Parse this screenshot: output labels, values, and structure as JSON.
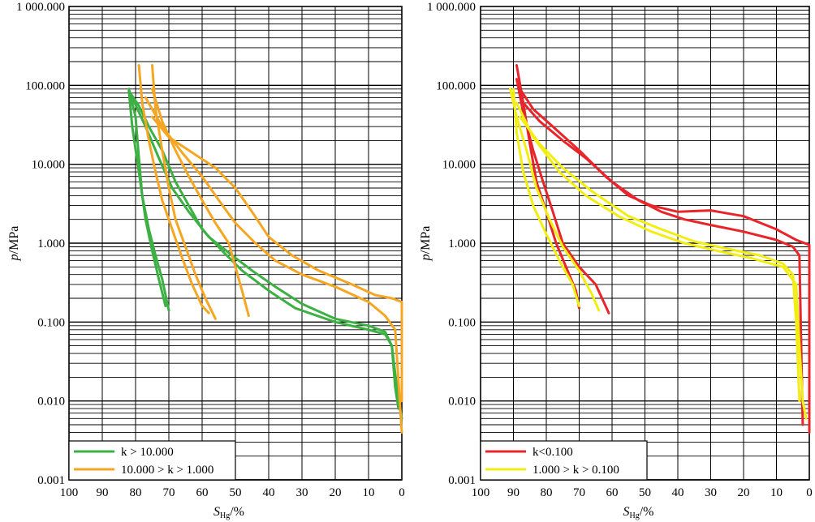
{
  "chart_data": [
    {
      "type": "line",
      "panel": "left",
      "xlabel": "S_Hg/%",
      "xlabel_main": "S",
      "xlabel_sub": "Hg",
      "xlabel_unit": "/%",
      "ylabel": "p/MPa",
      "ylabel_italic": "p",
      "ylabel_unit": "/MPa",
      "x_reversed": true,
      "xlim": [
        100,
        0
      ],
      "ylim": [
        0.001,
        1000
      ],
      "y_scale": "log",
      "grid": true,
      "legend_position": "bottom-left",
      "x_ticks": [
        "100",
        "90",
        "80",
        "70",
        "60",
        "50",
        "40",
        "30",
        "20",
        "10",
        "0"
      ],
      "y_ticks": [
        "0.001",
        "0.010",
        "0.100",
        "1.000",
        "10.000",
        "100.000",
        "1 000.000"
      ],
      "series": [
        {
          "name": "k > 10.000",
          "color": "#3cb043",
          "curves": [
            [
              [
                82,
                90
              ],
              [
                80,
                40
              ],
              [
                79,
                12
              ],
              [
                78,
                4
              ],
              [
                76,
                1.5
              ],
              [
                74,
                0.7
              ],
              [
                72,
                0.35
              ],
              [
                70,
                0.14
              ]
            ],
            [
              [
                82,
                85
              ],
              [
                81,
                30
              ],
              [
                79,
                8
              ],
              [
                77,
                2
              ],
              [
                75,
                0.8
              ],
              [
                73,
                0.35
              ],
              [
                71,
                0.16
              ]
            ],
            [
              [
                82,
                85
              ],
              [
                79,
                55
              ],
              [
                76,
                30
              ],
              [
                72,
                15
              ],
              [
                68,
                6
              ],
              [
                64,
                3
              ],
              [
                60,
                1.5
              ],
              [
                54,
                0.8
              ],
              [
                48,
                0.45
              ],
              [
                40,
                0.25
              ],
              [
                32,
                0.15
              ],
              [
                20,
                0.1
              ],
              [
                10,
                0.08
              ],
              [
                5,
                0.07
              ],
              [
                3,
                0.05
              ],
              [
                1,
                0.01
              ],
              [
                0,
                0.006
              ]
            ],
            [
              [
                81,
                70
              ],
              [
                77,
                30
              ],
              [
                73,
                12
              ],
              [
                69,
                5
              ],
              [
                64,
                2.5
              ],
              [
                58,
                1.2
              ],
              [
                51,
                0.7
              ],
              [
                45,
                0.45
              ],
              [
                38,
                0.28
              ],
              [
                30,
                0.17
              ],
              [
                20,
                0.11
              ],
              [
                10,
                0.09
              ],
              [
                5,
                0.075
              ],
              [
                3,
                0.05
              ],
              [
                2,
                0.015
              ],
              [
                1,
                0.008
              ]
            ]
          ]
        },
        {
          "name": "10.000 > k > 1.000",
          "color": "#f5a623",
          "curves": [
            [
              [
                79,
                180
              ],
              [
                78,
                60
              ],
              [
                76,
                20
              ],
              [
                74,
                8
              ],
              [
                72,
                3.5
              ],
              [
                69,
                1.5
              ],
              [
                66,
                0.65
              ],
              [
                63,
                0.3
              ],
              [
                60,
                0.16
              ],
              [
                58,
                0.13
              ]
            ],
            [
              [
                75,
                180
              ],
              [
                74,
                50
              ],
              [
                72,
                15
              ],
              [
                70,
                5
              ],
              [
                68,
                2
              ],
              [
                65,
                0.9
              ],
              [
                62,
                0.4
              ],
              [
                59,
                0.2
              ],
              [
                56,
                0.11
              ]
            ],
            [
              [
                75,
                90
              ],
              [
                72,
                35
              ],
              [
                68,
                15
              ],
              [
                64,
                7
              ],
              [
                60,
                3.5
              ],
              [
                56,
                1.8
              ],
              [
                52,
                1
              ],
              [
                50,
                0.5
              ],
              [
                48,
                0.25
              ],
              [
                46,
                0.12
              ]
            ],
            [
              [
                77,
                70
              ],
              [
                72,
                30
              ],
              [
                66,
                14
              ],
              [
                60,
                7
              ],
              [
                55,
                3.5
              ],
              [
                50,
                1.8
              ],
              [
                44,
                1
              ],
              [
                38,
                0.6
              ],
              [
                30,
                0.4
              ],
              [
                20,
                0.28
              ],
              [
                10,
                0.18
              ],
              [
                5,
                0.12
              ],
              [
                2,
                0.08
              ],
              [
                0,
                0.004
              ]
            ],
            [
              [
                75,
                40
              ],
              [
                70,
                22
              ],
              [
                64,
                15
              ],
              [
                56,
                9
              ],
              [
                50,
                5
              ],
              [
                45,
                2.5
              ],
              [
                40,
                1.2
              ],
              [
                33,
                0.7
              ],
              [
                25,
                0.45
              ],
              [
                15,
                0.3
              ],
              [
                8,
                0.22
              ],
              [
                3,
                0.2
              ],
              [
                0,
                0.18
              ],
              [
                0,
                0.01
              ]
            ]
          ]
        }
      ]
    },
    {
      "type": "line",
      "panel": "right",
      "xlabel": "S_Hg/%",
      "xlabel_main": "S",
      "xlabel_sub": "Hg",
      "xlabel_unit": "/%",
      "ylabel": "p/MPa",
      "ylabel_italic": "p",
      "ylabel_unit": "/MPa",
      "x_reversed": true,
      "xlim": [
        100,
        0
      ],
      "ylim": [
        0.001,
        1000
      ],
      "y_scale": "log",
      "grid": true,
      "legend_position": "bottom-left",
      "x_ticks": [
        "100",
        "90",
        "80",
        "70",
        "60",
        "50",
        "40",
        "30",
        "20",
        "10",
        "0"
      ],
      "y_ticks": [
        "0.001",
        "0.010",
        "0.100",
        "1.000",
        "10.000",
        "100.000",
        "1 000.000"
      ],
      "series": [
        {
          "name": "k<0.100",
          "color": "#e8252a",
          "curves": [
            [
              [
                89,
                180
              ],
              [
                87,
                60
              ],
              [
                85,
                18
              ],
              [
                83,
                6
              ],
              [
                80,
                2.5
              ],
              [
                77,
                1
              ],
              [
                74,
                0.5
              ],
              [
                71,
                0.25
              ],
              [
                70,
                0.15
              ]
            ],
            [
              [
                89,
                120
              ],
              [
                87,
                45
              ],
              [
                84,
                15
              ],
              [
                81,
                6
              ],
              [
                78,
                2.5
              ],
              [
                75,
                1
              ],
              [
                70,
                0.5
              ],
              [
                65,
                0.3
              ],
              [
                61,
                0.13
              ]
            ],
            [
              [
                88,
                90
              ],
              [
                84,
                50
              ],
              [
                78,
                30
              ],
              [
                70,
                15
              ],
              [
                62,
                7
              ],
              [
                55,
                4
              ],
              [
                48,
                3
              ],
              [
                40,
                2.5
              ],
              [
                30,
                2.6
              ],
              [
                20,
                2.2
              ],
              [
                10,
                1.5
              ],
              [
                4,
                1.1
              ],
              [
                0,
                0.95
              ],
              [
                0,
                0.004
              ]
            ],
            [
              [
                87,
                60
              ],
              [
                82,
                35
              ],
              [
                75,
                20
              ],
              [
                68,
                12
              ],
              [
                60,
                6
              ],
              [
                52,
                3.5
              ],
              [
                45,
                2.5
              ],
              [
                38,
                2
              ],
              [
                30,
                1.7
              ],
              [
                20,
                1.4
              ],
              [
                10,
                1.1
              ],
              [
                5,
                0.9
              ],
              [
                3,
                0.7
              ],
              [
                2,
                0.005
              ]
            ]
          ]
        },
        {
          "name": "1.000 > k > 0.100",
          "color": "#f2ee14",
          "curves": [
            [
              [
                90,
                90
              ],
              [
                89,
                25
              ],
              [
                87,
                8
              ],
              [
                84,
                3
              ],
              [
                80,
                1.3
              ],
              [
                76,
                0.6
              ],
              [
                72,
                0.3
              ],
              [
                70,
                0.16
              ]
            ],
            [
              [
                91,
                90
              ],
              [
                89,
                40
              ],
              [
                86,
                15
              ],
              [
                83,
                5
              ],
              [
                79,
                2
              ],
              [
                75,
                0.9
              ],
              [
                70,
                0.45
              ],
              [
                66,
                0.22
              ],
              [
                64,
                0.14
              ]
            ],
            [
              [
                89,
                60
              ],
              [
                84,
                22
              ],
              [
                76,
                8
              ],
              [
                68,
                4
              ],
              [
                58,
                2.2
              ],
              [
                48,
                1.4
              ],
              [
                38,
                1
              ],
              [
                28,
                0.8
              ],
              [
                18,
                0.65
              ],
              [
                8,
                0.5
              ],
              [
                4,
                0.3
              ],
              [
                3,
                0.05
              ],
              [
                2,
                0.01
              ],
              [
                1,
                0.006
              ]
            ],
            [
              [
                88,
                40
              ],
              [
                82,
                18
              ],
              [
                75,
                9
              ],
              [
                66,
                4.5
              ],
              [
                55,
                2.2
              ],
              [
                45,
                1.5
              ],
              [
                35,
                1.05
              ],
              [
                25,
                0.85
              ],
              [
                15,
                0.7
              ],
              [
                8,
                0.55
              ],
              [
                5,
                0.4
              ],
              [
                4,
                0.1
              ],
              [
                3,
                0.01
              ]
            ]
          ]
        }
      ]
    }
  ]
}
